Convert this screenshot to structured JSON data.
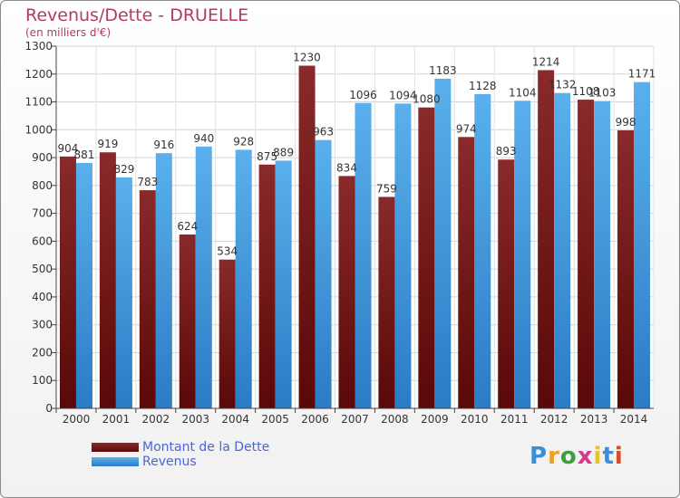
{
  "header": {
    "title": "Revenus/Dette - DRUELLE",
    "subtitle": "(en milliers d'€)"
  },
  "chart_data": {
    "type": "bar",
    "categories": [
      "2000",
      "2001",
      "2002",
      "2003",
      "2004",
      "2005",
      "2006",
      "2007",
      "2008",
      "2009",
      "2010",
      "2011",
      "2012",
      "2013",
      "2014"
    ],
    "series": [
      {
        "name": "Montant de la Dette",
        "color": "#7a1a1a",
        "values": [
          904,
          919,
          783,
          624,
          534,
          875,
          1230,
          834,
          759,
          1080,
          974,
          893,
          1214,
          1108,
          998
        ]
      },
      {
        "name": "Revenus",
        "color": "#3a98dc",
        "values": [
          881,
          829,
          916,
          940,
          928,
          889,
          963,
          1096,
          1094,
          1183,
          1128,
          1104,
          1132,
          1103,
          1171
        ]
      }
    ],
    "ylim": [
      0,
      1300
    ],
    "yticks": [
      0,
      100,
      200,
      300,
      400,
      500,
      600,
      700,
      800,
      900,
      1000,
      1100,
      1200,
      1300
    ],
    "grid": true,
    "legend": "bottom-left"
  },
  "branding": {
    "logo_letters": [
      "P",
      "r",
      "o",
      "x",
      "i",
      "t",
      "i"
    ],
    "logo_colors": [
      "#3a8fd8",
      "#f0a020",
      "#3aa040",
      "#d83a8a",
      "#f0c020",
      "#3a8fd8",
      "#d84a2a"
    ]
  }
}
